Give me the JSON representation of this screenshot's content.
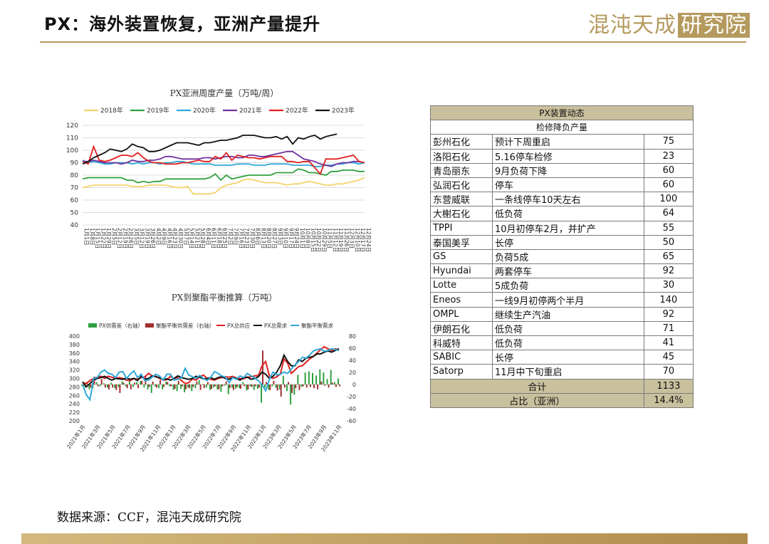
{
  "header": {
    "title": "PX：海外装置恢复，亚洲产量提升"
  },
  "logo": {
    "main": "混沌天成",
    "boxed": "研究院"
  },
  "footer": {
    "source": "数据来源：CCF，混沌天成研究院"
  },
  "colors": {
    "gold": "#b59a5e",
    "table_header": "#c9c09e"
  },
  "chart_data": [
    {
      "type": "line",
      "title": "PX亚洲周度产量（万吨/周）",
      "ylim": [
        40,
        120
      ],
      "yticks": [
        40,
        50,
        60,
        70,
        80,
        90,
        100,
        110,
        120
      ],
      "x_tick_labels": [
        "1月1日",
        "1月8日",
        "1月15日",
        "1月22日",
        "1月29日",
        "2月5日",
        "2月12日",
        "2月19日",
        "2月26日",
        "3月5日",
        "3月12日",
        "3月19日",
        "3月26日",
        "4月2日",
        "4月9日",
        "4月16日",
        "4月23日",
        "4月30日",
        "5月7日",
        "5月14日",
        "5月21日",
        "5月28日",
        "6月4日",
        "6月11日",
        "6月18日",
        "6月25日",
        "7月2日",
        "7月9日",
        "7月16日",
        "7月23日",
        "7月30日",
        "8月6日",
        "8月13日",
        "8月20日",
        "8月27日",
        "9月3日",
        "9月10日",
        "9月17日",
        "9月24日",
        "10月1日",
        "10月8日",
        "10月15日",
        "10月22日",
        "10月29日",
        "11月5日",
        "11月12日",
        "11月19日",
        "11月26日",
        "12月3日",
        "12月10日",
        "12月17日",
        "12月24日"
      ],
      "series": [
        {
          "name": "2018年",
          "color": "#f5d36b",
          "values": [
            70,
            71,
            72,
            72,
            72,
            72,
            72,
            72,
            72,
            71,
            71,
            71,
            72,
            72,
            72,
            72,
            71,
            70,
            70,
            71,
            65,
            65,
            65,
            65,
            66,
            70,
            72,
            73,
            74,
            76,
            77,
            76,
            75,
            74,
            74,
            74,
            73,
            72,
            73,
            73,
            74,
            75,
            74,
            73,
            72,
            72,
            73,
            73,
            74,
            75,
            76,
            78
          ]
        },
        {
          "name": "2019年",
          "color": "#30a040",
          "values": [
            77,
            78,
            78,
            78,
            78,
            78,
            78,
            78,
            76,
            76,
            74,
            75,
            74,
            75,
            75,
            77,
            77,
            77,
            77,
            77,
            77,
            77,
            77,
            78,
            81,
            76,
            80,
            77,
            78,
            79,
            80,
            80,
            80,
            80,
            80,
            82,
            82,
            82,
            82,
            85,
            84,
            82,
            82,
            81,
            80,
            83,
            83,
            84,
            84,
            84,
            83,
            83
          ]
        },
        {
          "name": "2020年",
          "color": "#30a8d8",
          "values": [
            92,
            90,
            91,
            90,
            89,
            89,
            90,
            90,
            90,
            89,
            90,
            89,
            90,
            90,
            89,
            90,
            90,
            91,
            91,
            90,
            89,
            89,
            89,
            89,
            88,
            88,
            88,
            88,
            89,
            89,
            89,
            88,
            88,
            88,
            89,
            89,
            89,
            89,
            88,
            88,
            88,
            88,
            87,
            87,
            88,
            88,
            89,
            89,
            90,
            90,
            89,
            90
          ]
        },
        {
          "name": "2021年",
          "color": "#7030a0",
          "values": [
            91,
            91,
            92,
            91,
            90,
            90,
            90,
            89,
            90,
            92,
            91,
            91,
            92,
            92,
            93,
            95,
            95,
            94,
            93,
            93,
            93,
            93,
            94,
            94,
            93,
            94,
            95,
            95,
            94,
            94,
            96,
            96,
            95,
            95,
            96,
            97,
            98,
            99,
            99,
            96,
            93,
            92,
            91,
            89,
            88,
            87,
            89,
            90,
            90,
            91,
            91,
            90
          ]
        },
        {
          "name": "2022年",
          "color": "#e02020",
          "values": [
            91,
            89,
            103,
            92,
            91,
            92,
            94,
            96,
            96,
            95,
            98,
            94,
            91,
            90,
            90,
            89,
            89,
            89,
            90,
            90,
            91,
            92,
            91,
            91,
            95,
            93,
            98,
            92,
            96,
            95,
            94,
            94,
            93,
            94,
            95,
            95,
            95,
            91,
            91,
            90,
            91,
            91,
            86,
            81,
            93,
            93,
            93,
            94,
            95,
            96,
            91,
            90
          ]
        },
        {
          "name": "2023年",
          "color": "#111111",
          "values": [
            89,
            91,
            94,
            96,
            98,
            101,
            100,
            99,
            101,
            105,
            103,
            102,
            99,
            99,
            100,
            102,
            104,
            106,
            106,
            106,
            105,
            104,
            106,
            106,
            107,
            108,
            108,
            109,
            110,
            112,
            112,
            112,
            111,
            110,
            110,
            111,
            109,
            111,
            105,
            110,
            109,
            111,
            112,
            109,
            111,
            112,
            113
          ]
        }
      ]
    },
    {
      "type": "line",
      "title": "PX到聚酯平衡推算（万吨）",
      "ylim": [
        200,
        400
      ],
      "yticks": [
        200,
        220,
        240,
        260,
        280,
        300,
        320,
        340,
        360,
        380,
        400
      ],
      "y2lim": [
        -60,
        80
      ],
      "y2ticks": [
        -60,
        -40,
        -20,
        0,
        20,
        40,
        60,
        80
      ],
      "x_tick_labels": [
        "2021年1月",
        "2021年3月",
        "2021年5月",
        "2021年7月",
        "2021年9月",
        "2021年11月",
        "2022年1月",
        "2022年3月",
        "2022年5月",
        "2022年7月",
        "2022年9月",
        "2022年11月",
        "2023年1月",
        "2023年3月",
        "2023年5月",
        "2023年7月",
        "2023年9月",
        "2023年11月"
      ],
      "series": [
        {
          "name": "PX供需差（右轴）",
          "color": "#30a040",
          "axis": "right",
          "kind": "bar",
          "values": [
            -2,
            -5,
            -8,
            -6,
            4,
            -3,
            2,
            -5,
            3,
            -6,
            -4,
            5,
            -3,
            8,
            -4,
            4,
            6,
            -5,
            -8,
            -14,
            -3,
            -6,
            -8,
            5,
            -3,
            -9,
            -11,
            -7,
            -13,
            -5,
            -11,
            -6,
            7,
            1,
            -5,
            -9,
            -5,
            -8,
            -12,
            -2,
            -16,
            -5,
            -7,
            -6,
            4,
            -10,
            -3,
            -9,
            -7,
            -30,
            -5,
            -9,
            -3,
            -5,
            -8,
            14,
            -11,
            -33,
            -17,
            16,
            -4,
            20,
            22,
            19,
            15,
            25,
            20,
            9,
            24,
            4,
            10
          ]
        },
        {
          "name": "聚酯平衡供需差（右轴）",
          "color": "#a03030",
          "axis": "right",
          "kind": "bar",
          "values": [
            -3,
            4,
            -5,
            13,
            -3,
            9,
            -5,
            -8,
            -5,
            -9,
            -14,
            3,
            -6,
            -8,
            3,
            -6,
            6,
            13,
            -4,
            5,
            -5,
            7,
            -4,
            4,
            -3,
            -7,
            6,
            -3,
            -8,
            -6,
            -4,
            5,
            -9,
            -6,
            4,
            -7,
            -3,
            -8,
            -3,
            5,
            -6,
            -9,
            -4,
            -7,
            -3,
            -8,
            -4,
            -3,
            -5,
            56,
            4,
            -9,
            6,
            -10,
            -20,
            -5,
            4,
            -14,
            -6,
            -9,
            -3,
            -5,
            -4,
            -6,
            -8,
            5,
            -2,
            -5,
            3,
            -4,
            -3
          ]
        },
        {
          "name": "PX总供应",
          "color": "#e02020",
          "axis": "left",
          "kind": "line",
          "values": [
            290,
            288,
            295,
            300,
            303,
            305,
            300,
            305,
            303,
            300,
            302,
            300,
            296,
            295,
            300,
            298,
            302,
            304,
            312,
            306,
            305,
            300,
            296,
            297,
            305,
            300,
            302,
            295,
            288,
            290,
            299,
            296,
            304,
            308,
            300,
            298,
            296,
            300,
            302,
            304,
            303,
            305,
            301,
            300,
            299,
            303,
            304,
            306,
            307,
            330,
            340,
            306,
            300,
            304,
            310,
            346,
            336,
            312,
            320,
            328,
            330,
            338,
            346,
            352,
            360,
            368,
            375,
            370,
            366,
            370,
            367
          ]
        },
        {
          "name": "PX总需求",
          "color": "#111111",
          "axis": "left",
          "kind": "line",
          "values": [
            292,
            280,
            288,
            296,
            300,
            302,
            305,
            300,
            296,
            300,
            299,
            298,
            301,
            298,
            300,
            295,
            305,
            298,
            300,
            306,
            304,
            302,
            298,
            299,
            296,
            300,
            306,
            302,
            300,
            298,
            300,
            305,
            303,
            299,
            300,
            302,
            298,
            302,
            304,
            300,
            298,
            302,
            300,
            296,
            302,
            303,
            298,
            300,
            304,
            315,
            310,
            300,
            305,
            315,
            330,
            355,
            340,
            330,
            330,
            344,
            340,
            348,
            350,
            352,
            358,
            358,
            362,
            365,
            362,
            366,
            370
          ]
        },
        {
          "name": "聚酯平衡需求",
          "color": "#30a8d8",
          "axis": "left",
          "kind": "line",
          "values": [
            285,
            262,
            250,
            300,
            302,
            315,
            320,
            312,
            310,
            302,
            315,
            316,
            300,
            310,
            318,
            302,
            310,
            295,
            296,
            303,
            310,
            306,
            296,
            310,
            310,
            296,
            298,
            302,
            324,
            308,
            304,
            300,
            307,
            300,
            295,
            303,
            316,
            312,
            306,
            303,
            290,
            302,
            298,
            306,
            302,
            312,
            306,
            301,
            295,
            285,
            271,
            298,
            315,
            308,
            310,
            315,
            312,
            322,
            332,
            340,
            350,
            348,
            355,
            365,
            368,
            370,
            364,
            366,
            370,
            368,
            366
          ]
        }
      ]
    }
  ],
  "table": {
    "title": "PX装置动态",
    "subtitle": "检修降负产量",
    "rows": [
      {
        "name": "彭州石化",
        "status": "预计下周重启",
        "value": "75"
      },
      {
        "name": "洛阳石化",
        "status": "5.16停车检修",
        "value": "23"
      },
      {
        "name": "青岛丽东",
        "status": "9月负荷下降",
        "value": "60"
      },
      {
        "name": "弘润石化",
        "status": "停车",
        "value": "60"
      },
      {
        "name": "东营威联",
        "status": "一条线停车10天左右",
        "value": "100"
      },
      {
        "name": "大榭石化",
        "status": "低负荷",
        "value": "64"
      },
      {
        "name": "TPPI",
        "status": "10月初停车2月，并扩产",
        "value": "55"
      },
      {
        "name": "泰国美孚",
        "status": "长停",
        "value": "50"
      },
      {
        "name": "GS",
        "status": "负荷5成",
        "value": "65"
      },
      {
        "name": "Hyundai",
        "status": "两套停车",
        "value": "92"
      },
      {
        "name": "Lotte",
        "status": "5成负荷",
        "value": "30"
      },
      {
        "name": "Eneos",
        "status": "一线9月初停两个半月",
        "value": "140"
      },
      {
        "name": "OMPL",
        "status": "继续生产汽油",
        "value": "92"
      },
      {
        "name": "伊朗石化",
        "status": "低负荷",
        "value": "71"
      },
      {
        "name": "科威特",
        "status": "低负荷",
        "value": "41"
      },
      {
        "name": "SABIC",
        "status": "长停",
        "value": "45"
      },
      {
        "name": "Satorp",
        "status": "11月中下旬重启",
        "value": "70"
      }
    ],
    "total_label": "合计",
    "total_value": "1133",
    "share_label": "占比（亚洲）",
    "share_value": "14.4%"
  }
}
